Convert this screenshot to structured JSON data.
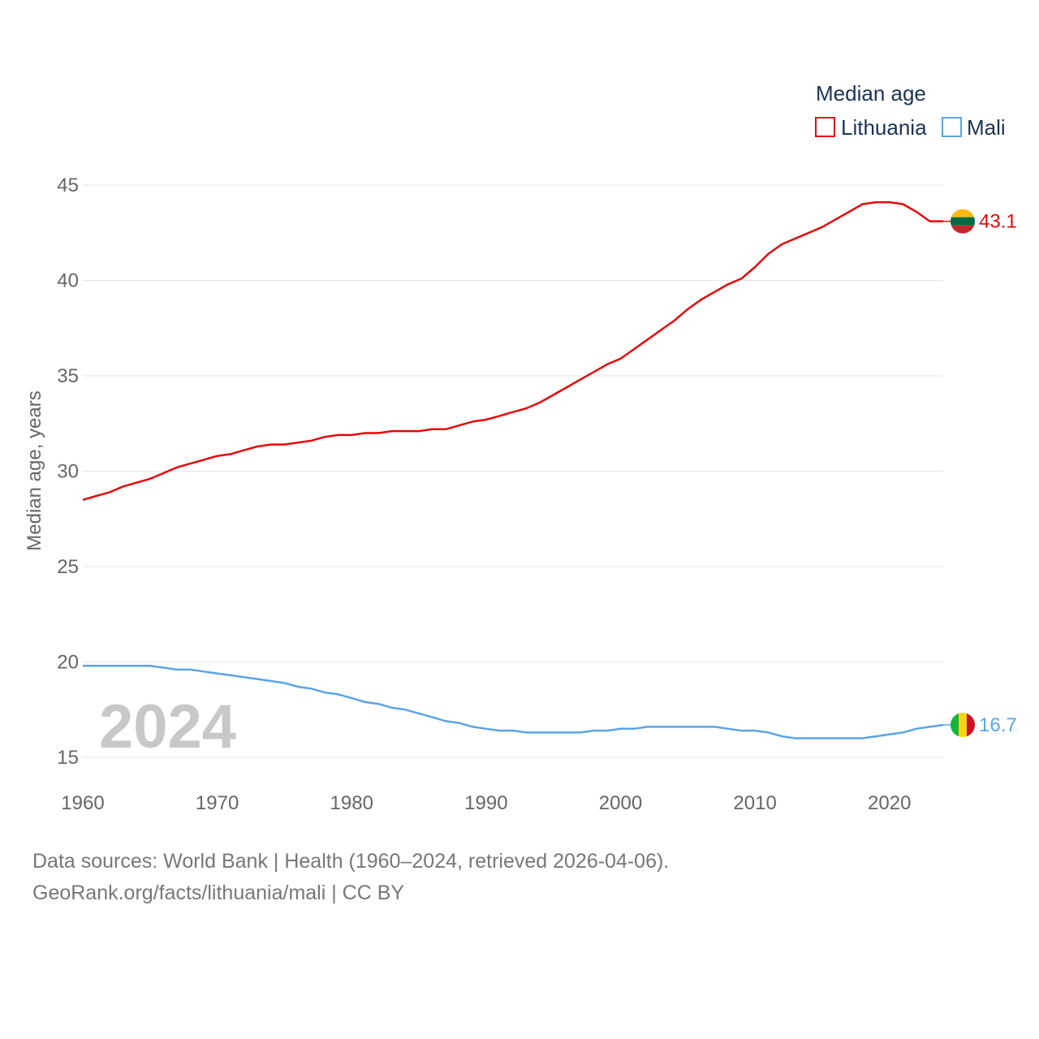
{
  "chart_data": {
    "type": "line",
    "title": "",
    "xlabel": "",
    "ylabel": "Median age, years",
    "ylim": [
      15,
      45
    ],
    "xlim": [
      1960,
      2024
    ],
    "y_ticks": [
      15,
      20,
      25,
      30,
      35,
      40,
      45
    ],
    "x_ticks": [
      1960,
      1970,
      1980,
      1990,
      2000,
      2010,
      2020
    ],
    "grid": true,
    "legend": {
      "title": "Median age",
      "position": "top-right"
    },
    "year_label": "2024",
    "series": [
      {
        "name": "Lithuania",
        "color": "#e4080a",
        "end_value_label": "43.1",
        "flag_colors": [
          "#fdb913",
          "#006a44",
          "#c1272d"
        ],
        "x": [
          1960,
          1961,
          1962,
          1963,
          1964,
          1965,
          1966,
          1967,
          1968,
          1969,
          1970,
          1971,
          1972,
          1973,
          1974,
          1975,
          1976,
          1977,
          1978,
          1979,
          1980,
          1981,
          1982,
          1983,
          1984,
          1985,
          1986,
          1987,
          1988,
          1989,
          1990,
          1991,
          1992,
          1993,
          1994,
          1995,
          1996,
          1997,
          1998,
          1999,
          2000,
          2001,
          2002,
          2003,
          2004,
          2005,
          2006,
          2007,
          2008,
          2009,
          2010,
          2011,
          2012,
          2013,
          2014,
          2015,
          2016,
          2017,
          2018,
          2019,
          2020,
          2021,
          2022,
          2023,
          2024
        ],
        "values": [
          28.5,
          28.7,
          28.9,
          29.2,
          29.4,
          29.6,
          29.9,
          30.2,
          30.4,
          30.6,
          30.8,
          30.9,
          31.1,
          31.3,
          31.4,
          31.4,
          31.5,
          31.6,
          31.8,
          31.9,
          31.9,
          32.0,
          32.0,
          32.1,
          32.1,
          32.1,
          32.2,
          32.2,
          32.4,
          32.6,
          32.7,
          32.9,
          33.1,
          33.3,
          33.6,
          34.0,
          34.4,
          34.8,
          35.2,
          35.6,
          35.9,
          36.4,
          36.9,
          37.4,
          37.9,
          38.5,
          39.0,
          39.4,
          39.8,
          40.1,
          40.7,
          41.4,
          41.9,
          42.2,
          42.5,
          42.8,
          43.2,
          43.6,
          44.0,
          44.1,
          44.1,
          44.0,
          43.6,
          43.1,
          43.1
        ]
      },
      {
        "name": "Mali",
        "color": "#5ba4e5",
        "end_value_label": "16.7",
        "flag_colors": [
          "#14b53a",
          "#fcd116",
          "#ce1126"
        ],
        "x": [
          1960,
          1961,
          1962,
          1963,
          1964,
          1965,
          1966,
          1967,
          1968,
          1969,
          1970,
          1971,
          1972,
          1973,
          1974,
          1975,
          1976,
          1977,
          1978,
          1979,
          1980,
          1981,
          1982,
          1983,
          1984,
          1985,
          1986,
          1987,
          1988,
          1989,
          1990,
          1991,
          1992,
          1993,
          1994,
          1995,
          1996,
          1997,
          1998,
          1999,
          2000,
          2001,
          2002,
          2003,
          2004,
          2005,
          2006,
          2007,
          2008,
          2009,
          2010,
          2011,
          2012,
          2013,
          2014,
          2015,
          2016,
          2017,
          2018,
          2019,
          2020,
          2021,
          2022,
          2023,
          2024
        ],
        "values": [
          19.8,
          19.8,
          19.8,
          19.8,
          19.8,
          19.8,
          19.7,
          19.6,
          19.6,
          19.5,
          19.4,
          19.3,
          19.2,
          19.1,
          19.0,
          18.9,
          18.7,
          18.6,
          18.4,
          18.3,
          18.1,
          17.9,
          17.8,
          17.6,
          17.5,
          17.3,
          17.1,
          16.9,
          16.8,
          16.6,
          16.5,
          16.4,
          16.4,
          16.3,
          16.3,
          16.3,
          16.3,
          16.3,
          16.4,
          16.4,
          16.5,
          16.5,
          16.6,
          16.6,
          16.6,
          16.6,
          16.6,
          16.6,
          16.5,
          16.4,
          16.4,
          16.3,
          16.1,
          16.0,
          16.0,
          16.0,
          16.0,
          16.0,
          16.0,
          16.1,
          16.2,
          16.3,
          16.5,
          16.6,
          16.7
        ]
      }
    ]
  },
  "footer": {
    "sources": "Data sources: World Bank | Health (1960–2024, retrieved 2026-04-06).",
    "attribution": "GeoRank.org/facts/lithuania/mali | CC BY"
  }
}
